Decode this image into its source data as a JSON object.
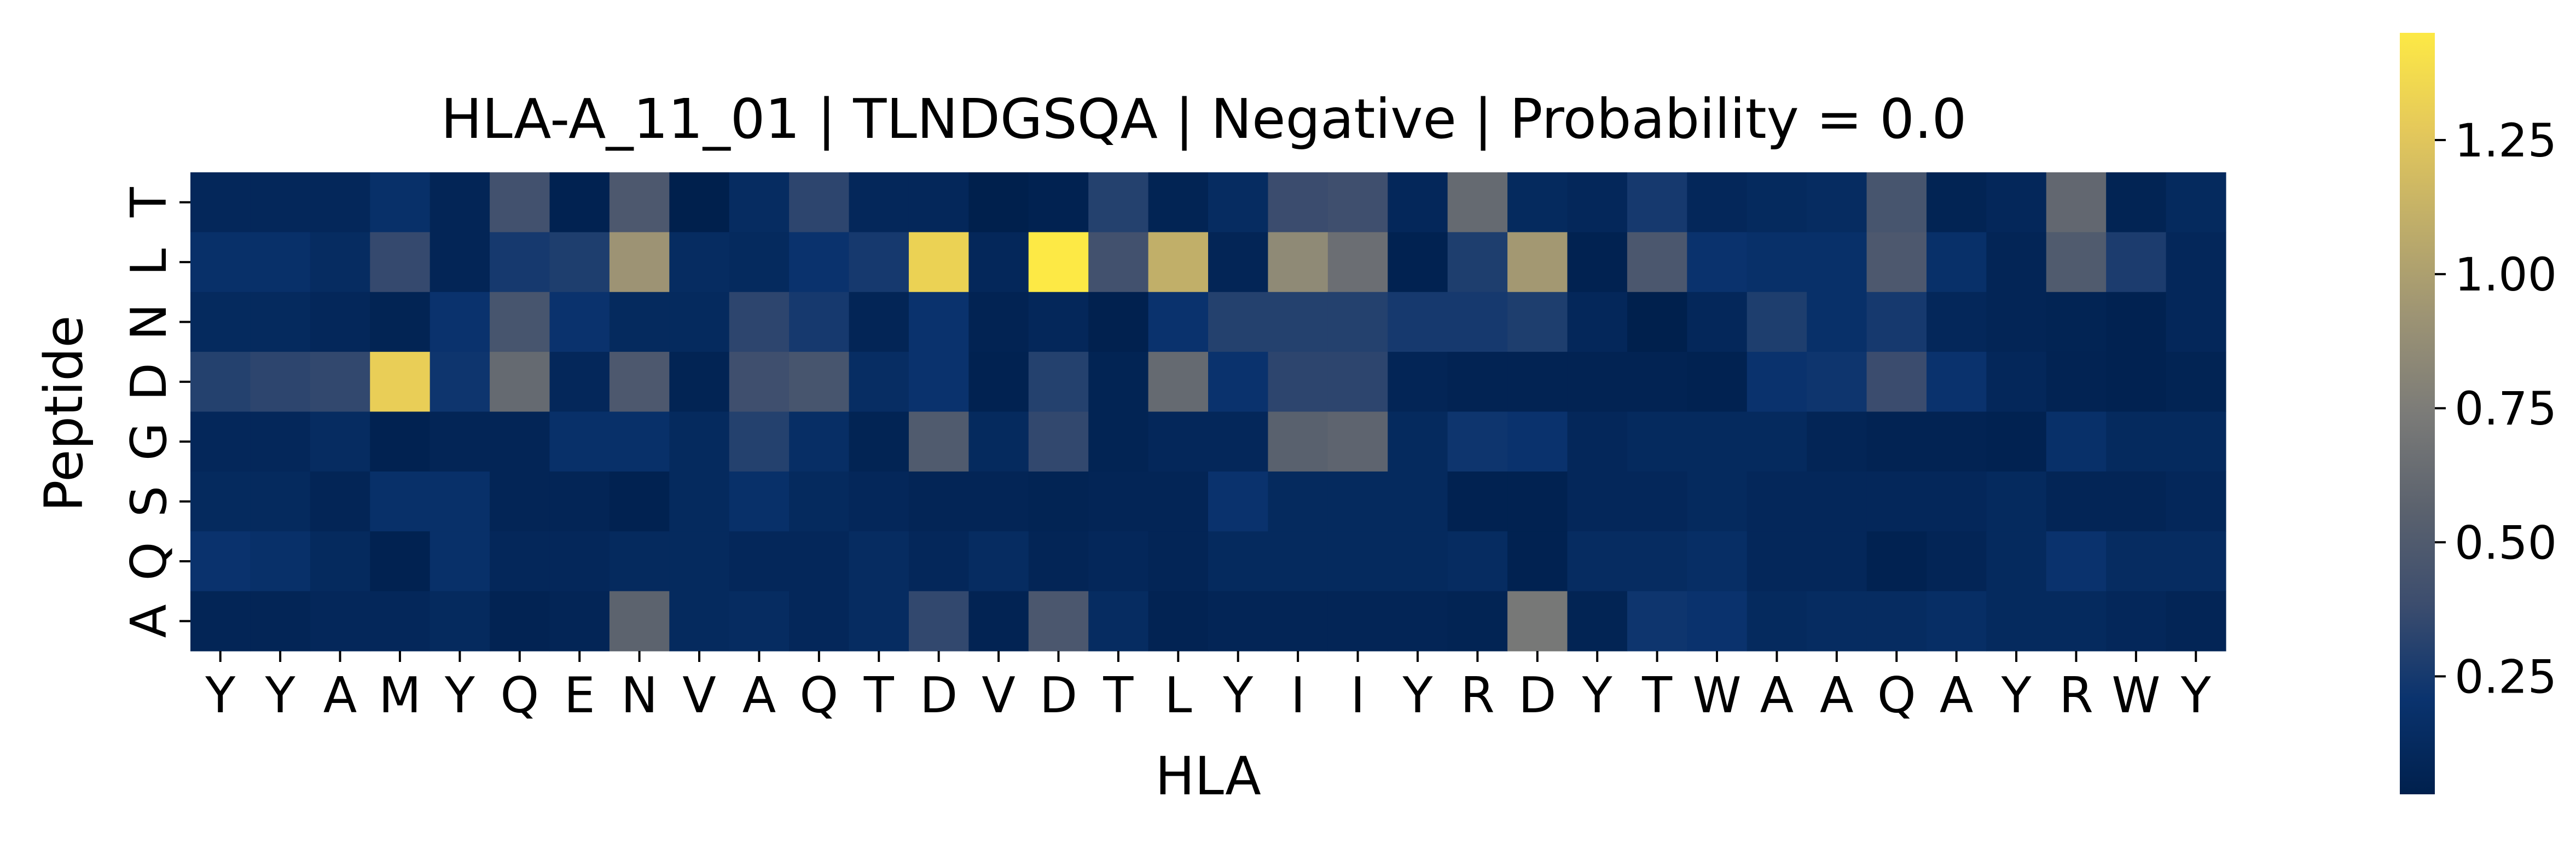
{
  "chart_data": {
    "type": "heatmap",
    "title": "HLA-A_11_01 | TLNDGSQA | Negative | Probability = 0.0",
    "xlabel": "HLA",
    "ylabel": "Peptide",
    "x_ticks": [
      "Y",
      "Y",
      "A",
      "M",
      "Y",
      "Q",
      "E",
      "N",
      "V",
      "A",
      "Q",
      "T",
      "D",
      "V",
      "D",
      "T",
      "L",
      "Y",
      "I",
      "I",
      "Y",
      "R",
      "D",
      "Y",
      "T",
      "W",
      "A",
      "A",
      "Q",
      "A",
      "Y",
      "R",
      "W",
      "Y"
    ],
    "y_ticks": [
      "T",
      "L",
      "N",
      "D",
      "G",
      "S",
      "Q",
      "A"
    ],
    "colorbar": {
      "colormap": "cividis",
      "vmin": 0.03,
      "vmax": 1.45,
      "ticks": [
        0.25,
        0.5,
        0.75,
        1.0,
        1.25
      ],
      "tick_labels": [
        "0.25",
        "0.50",
        "0.75",
        "1.00",
        "1.25"
      ]
    },
    "values": [
      [
        0.1,
        0.1,
        0.1,
        0.18,
        0.08,
        0.42,
        0.05,
        0.48,
        0.03,
        0.14,
        0.33,
        0.1,
        0.1,
        0.03,
        0.05,
        0.3,
        0.07,
        0.14,
        0.38,
        0.4,
        0.1,
        0.62,
        0.12,
        0.1,
        0.25,
        0.1,
        0.12,
        0.14,
        0.45,
        0.07,
        0.1,
        0.6,
        0.07,
        0.12
      ],
      [
        0.18,
        0.18,
        0.14,
        0.36,
        0.08,
        0.25,
        0.28,
        0.92,
        0.14,
        0.12,
        0.2,
        0.25,
        1.32,
        0.1,
        1.45,
        0.42,
        1.1,
        0.08,
        0.85,
        0.65,
        0.05,
        0.28,
        0.95,
        0.05,
        0.47,
        0.2,
        0.18,
        0.18,
        0.48,
        0.18,
        0.08,
        0.5,
        0.27,
        0.1
      ],
      [
        0.12,
        0.12,
        0.1,
        0.07,
        0.2,
        0.45,
        0.2,
        0.12,
        0.12,
        0.33,
        0.25,
        0.08,
        0.2,
        0.06,
        0.1,
        0.04,
        0.2,
        0.3,
        0.3,
        0.3,
        0.25,
        0.25,
        0.28,
        0.1,
        0.03,
        0.1,
        0.28,
        0.18,
        0.25,
        0.1,
        0.08,
        0.07,
        0.05,
        0.1
      ],
      [
        0.3,
        0.33,
        0.35,
        1.3,
        0.22,
        0.62,
        0.1,
        0.48,
        0.07,
        0.4,
        0.45,
        0.15,
        0.2,
        0.05,
        0.3,
        0.07,
        0.62,
        0.2,
        0.33,
        0.33,
        0.08,
        0.06,
        0.06,
        0.06,
        0.06,
        0.05,
        0.2,
        0.22,
        0.38,
        0.2,
        0.1,
        0.06,
        0.05,
        0.07
      ],
      [
        0.1,
        0.1,
        0.14,
        0.05,
        0.08,
        0.08,
        0.18,
        0.18,
        0.12,
        0.3,
        0.16,
        0.07,
        0.5,
        0.12,
        0.35,
        0.07,
        0.1,
        0.1,
        0.55,
        0.58,
        0.12,
        0.22,
        0.2,
        0.1,
        0.12,
        0.12,
        0.12,
        0.08,
        0.06,
        0.06,
        0.05,
        0.18,
        0.12,
        0.12
      ],
      [
        0.12,
        0.12,
        0.08,
        0.18,
        0.18,
        0.08,
        0.08,
        0.05,
        0.12,
        0.18,
        0.12,
        0.1,
        0.08,
        0.08,
        0.07,
        0.08,
        0.08,
        0.2,
        0.12,
        0.12,
        0.12,
        0.05,
        0.05,
        0.1,
        0.1,
        0.12,
        0.1,
        0.1,
        0.1,
        0.1,
        0.12,
        0.08,
        0.08,
        0.1
      ],
      [
        0.2,
        0.18,
        0.12,
        0.05,
        0.18,
        0.1,
        0.1,
        0.12,
        0.12,
        0.1,
        0.1,
        0.14,
        0.1,
        0.14,
        0.08,
        0.1,
        0.08,
        0.12,
        0.12,
        0.12,
        0.12,
        0.14,
        0.05,
        0.14,
        0.14,
        0.16,
        0.1,
        0.1,
        0.05,
        0.08,
        0.12,
        0.2,
        0.14,
        0.14
      ],
      [
        0.08,
        0.08,
        0.1,
        0.1,
        0.12,
        0.06,
        0.08,
        0.57,
        0.12,
        0.14,
        0.1,
        0.14,
        0.35,
        0.06,
        0.47,
        0.14,
        0.06,
        0.08,
        0.08,
        0.08,
        0.08,
        0.07,
        0.72,
        0.07,
        0.22,
        0.2,
        0.12,
        0.14,
        0.14,
        0.16,
        0.12,
        0.12,
        0.1,
        0.08
      ]
    ]
  }
}
